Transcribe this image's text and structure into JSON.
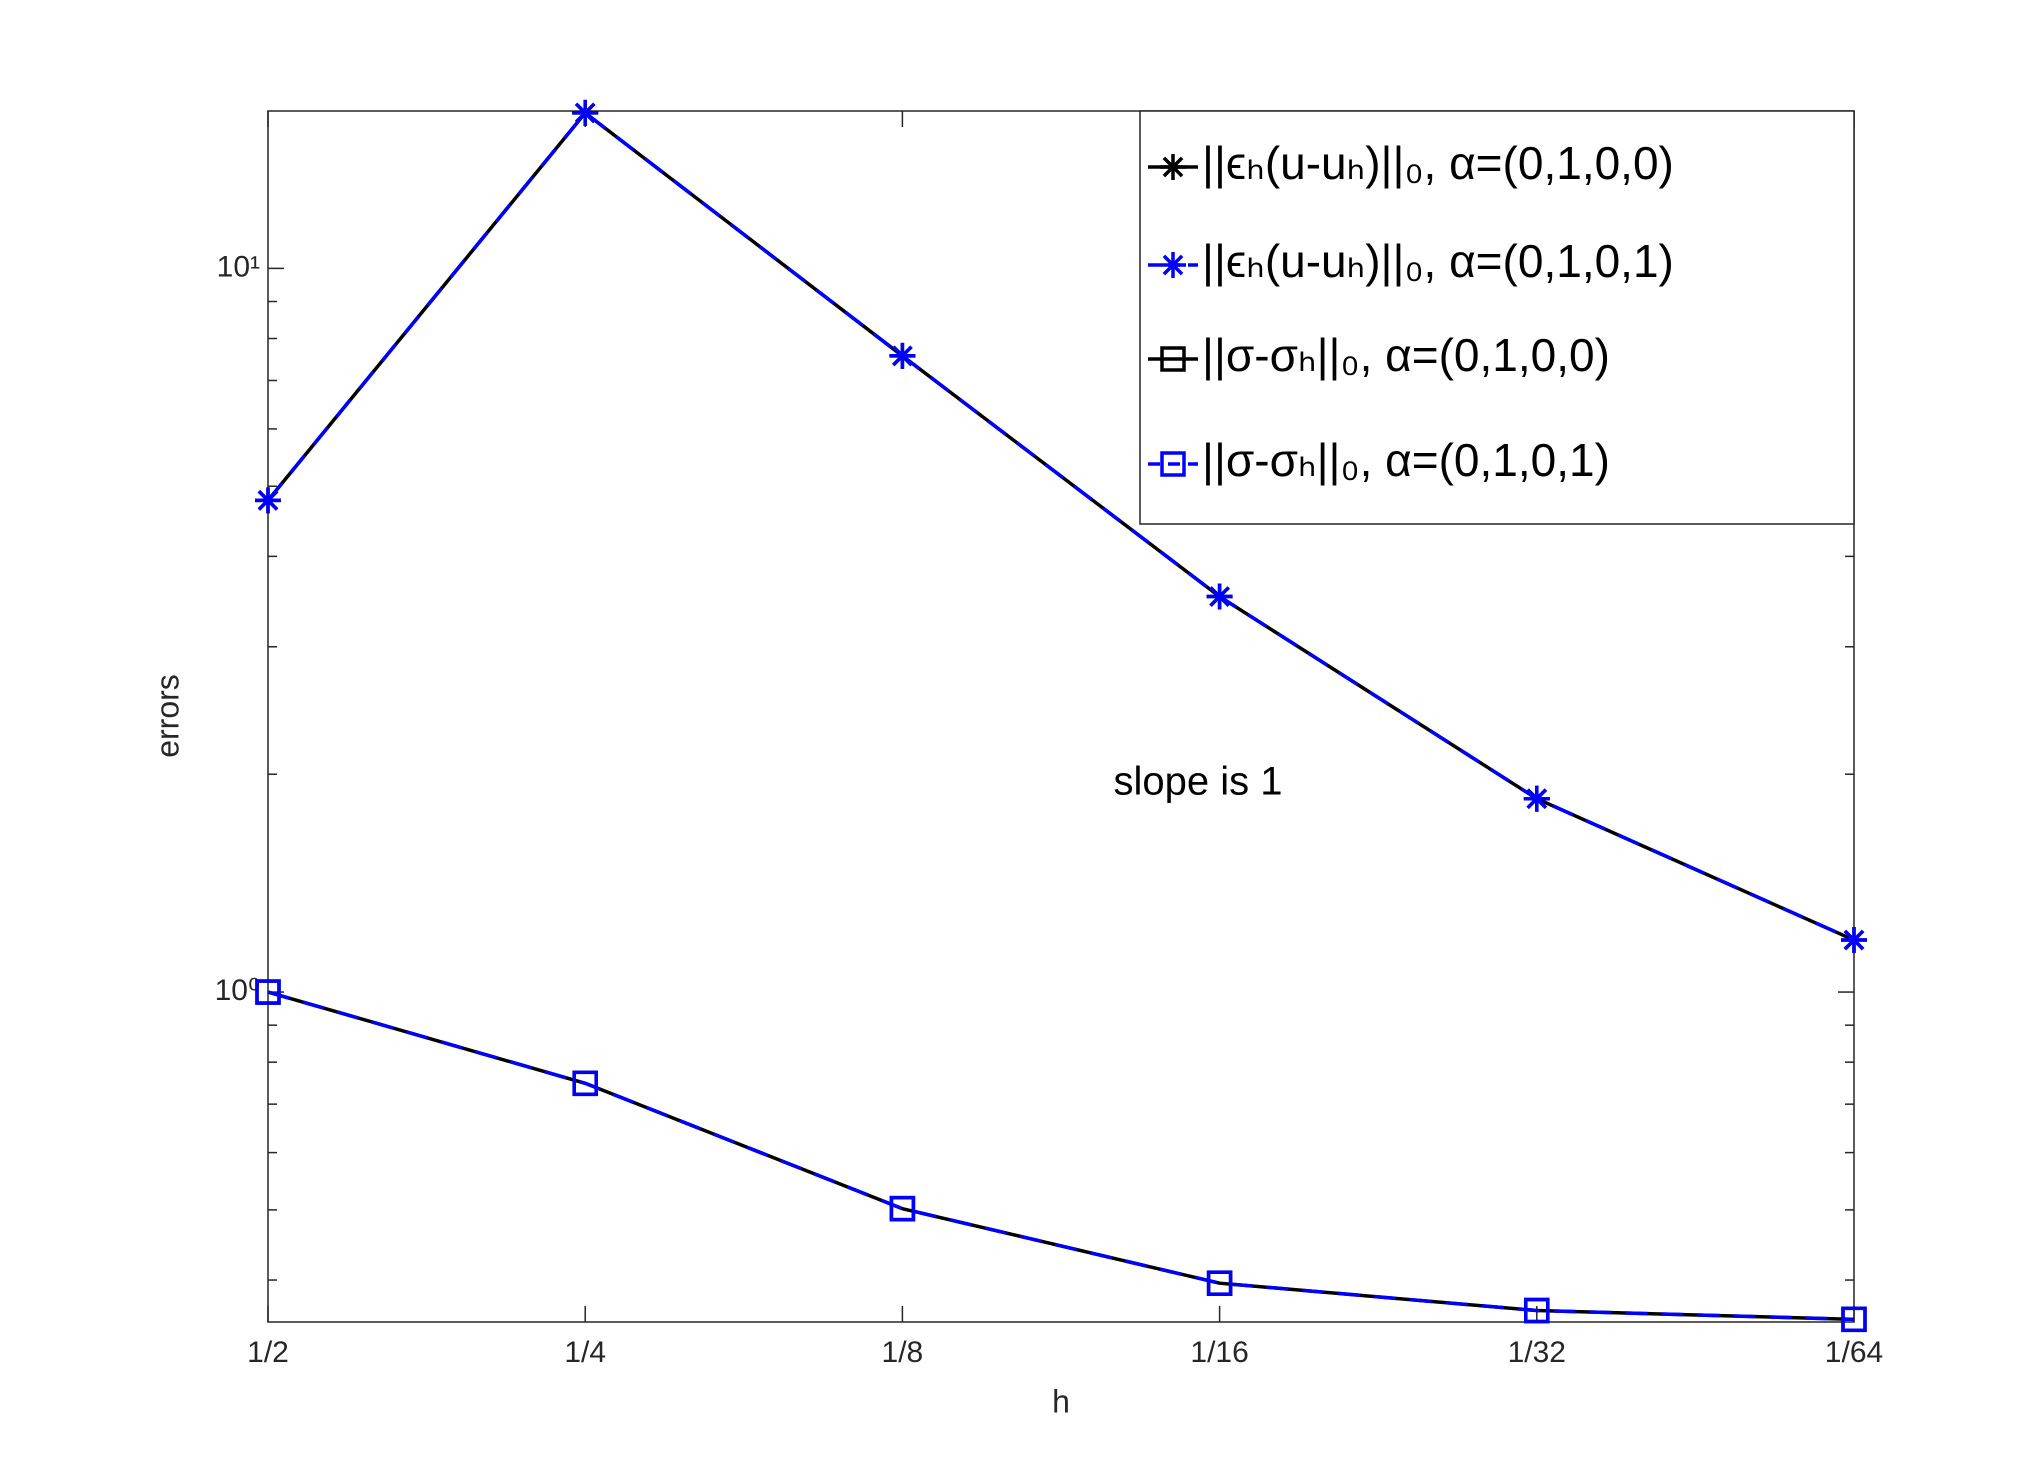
{
  "chart_data": {
    "type": "line",
    "xlabel": "h",
    "ylabel": "errors",
    "annotation": "slope is 1",
    "categories": [
      "1/2",
      "1/4",
      "1/8",
      "1/16",
      "1/32",
      "1/64"
    ],
    "ylog": true,
    "ylim": [
      0.35,
      16.5
    ],
    "yticks": [
      {
        "value": 1,
        "label": "10⁰"
      },
      {
        "value": 10,
        "label": "10¹"
      }
    ],
    "minor_yticks": [
      0.4,
      0.5,
      0.6,
      0.7,
      0.8,
      0.9,
      2,
      3,
      4,
      5,
      6,
      7,
      8,
      9
    ],
    "legend_position": "upper right",
    "series": [
      {
        "name": "||ϵₕ(u-uₕ)||₀, α=(0,1,0,0)",
        "color": "#000000",
        "marker": "star",
        "dashed": false,
        "values": [
          4.78,
          16.4,
          7.57,
          3.52,
          1.85,
          1.18
        ]
      },
      {
        "name": "||ϵₕ(u-uₕ)||₀,  α=(0,1,0,1)",
        "color": "#0000ff",
        "marker": "star",
        "dashed": true,
        "values": [
          4.78,
          16.4,
          7.57,
          3.52,
          1.85,
          1.18
        ]
      },
      {
        "name": "||σ-σₕ||₀, α=(0,1,0,0)",
        "color": "#000000",
        "marker": "square",
        "dashed": false,
        "values": [
          1.0,
          0.748,
          0.502,
          0.396,
          0.363,
          0.353
        ]
      },
      {
        "name": "||σ-σₕ||₀, α=(0,1,0,1)",
        "color": "#0000ff",
        "marker": "square",
        "dashed": true,
        "values": [
          1.0,
          0.748,
          0.502,
          0.396,
          0.363,
          0.353
        ]
      }
    ]
  }
}
